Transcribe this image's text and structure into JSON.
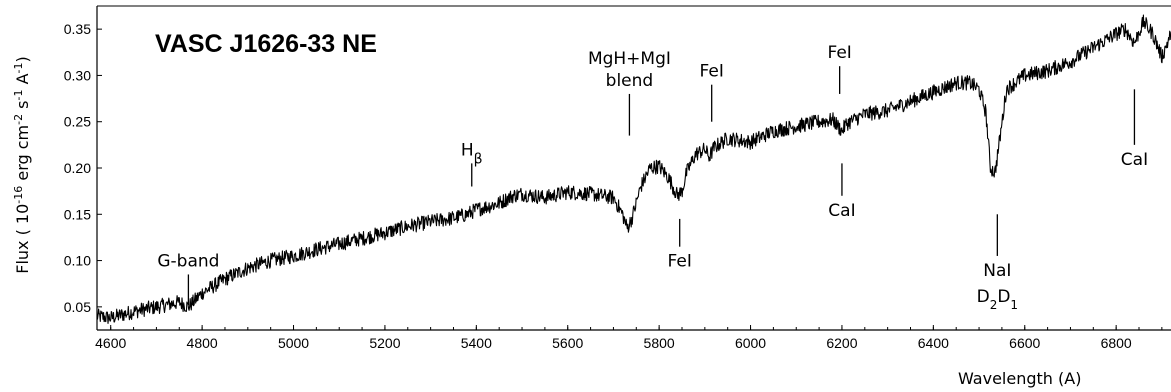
{
  "chart_data": {
    "type": "line",
    "title": "VASC J1626-33  NE",
    "xlabel": "Wavelength (A)",
    "ylabel": {
      "prefix": "Flux ( 10",
      "exp": "-16",
      "mid": " erg cm",
      "exp2": "-2",
      "mid2": " s",
      "exp3": "-1",
      "mid3": " A",
      "exp4": "-1",
      "suffix": ")"
    },
    "xlim": [
      4570,
      6920
    ],
    "ylim": [
      0.025,
      0.375
    ],
    "x_ticks": [
      4600,
      4800,
      5000,
      5200,
      5400,
      5600,
      5800,
      6000,
      6200,
      6400,
      6600,
      6800
    ],
    "y_ticks": [
      0.05,
      0.1,
      0.15,
      0.2,
      0.25,
      0.3,
      0.35
    ],
    "y_tick_labels": [
      "0.05",
      "0.10",
      "0.15",
      "0.20",
      "0.25",
      "0.30",
      "0.35"
    ],
    "grid": false,
    "legend": "none",
    "series": [
      {
        "x": [
          4570,
          4600,
          4650,
          4700,
          4750,
          4770,
          4800,
          4850,
          4900,
          4950,
          5000,
          5050,
          5100,
          5150,
          5200,
          5250,
          5300,
          5350,
          5380,
          5400,
          5450,
          5480,
          5500,
          5550,
          5600,
          5650,
          5700,
          5720,
          5730,
          5740,
          5760,
          5780,
          5800,
          5820,
          5840,
          5850,
          5860,
          5880,
          5900,
          5910,
          5920,
          5950,
          6000,
          6050,
          6100,
          6150,
          6180,
          6200,
          6210,
          6250,
          6300,
          6350,
          6400,
          6450,
          6480,
          6500,
          6515,
          6525,
          6535,
          6545,
          6560,
          6600,
          6650,
          6700,
          6750,
          6800,
          6820,
          6840,
          6860,
          6880,
          6900,
          6920
        ],
        "y": [
          0.04,
          0.038,
          0.045,
          0.05,
          0.055,
          0.05,
          0.065,
          0.08,
          0.092,
          0.1,
          0.105,
          0.112,
          0.118,
          0.124,
          0.13,
          0.137,
          0.142,
          0.146,
          0.15,
          0.155,
          0.162,
          0.17,
          0.172,
          0.168,
          0.174,
          0.172,
          0.168,
          0.15,
          0.135,
          0.145,
          0.18,
          0.2,
          0.202,
          0.19,
          0.17,
          0.175,
          0.195,
          0.215,
          0.22,
          0.212,
          0.222,
          0.232,
          0.228,
          0.24,
          0.245,
          0.25,
          0.252,
          0.24,
          0.248,
          0.258,
          0.262,
          0.272,
          0.282,
          0.292,
          0.292,
          0.285,
          0.26,
          0.2,
          0.195,
          0.23,
          0.285,
          0.3,
          0.305,
          0.315,
          0.33,
          0.345,
          0.35,
          0.335,
          0.358,
          0.345,
          0.32,
          0.345
        ],
        "noise_amplitude": 0.008
      }
    ],
    "annotations": [
      {
        "id": "g-band",
        "label": "G-band",
        "x": 4770,
        "line_from": 0.052,
        "line_to": 0.085
      },
      {
        "id": "hbeta",
        "label": "H",
        "sub": "β",
        "x": 5390,
        "line_from": 0.18,
        "line_to": 0.205
      },
      {
        "id": "mgh-mgi",
        "label": "MgH+MgI",
        "label2": "blend",
        "x": 5735,
        "line_from": 0.235,
        "line_to": 0.28
      },
      {
        "id": "fei-5915",
        "label": "FeI",
        "x": 5915,
        "line_from": 0.25,
        "line_to": 0.29
      },
      {
        "id": "fei-5845",
        "label": "FeI",
        "x": 5845,
        "line_from": 0.115,
        "line_to": 0.145
      },
      {
        "id": "fei-6190",
        "label": "FeI",
        "x": 6195,
        "line_from": 0.28,
        "line_to": 0.31
      },
      {
        "id": "cai-6200",
        "label": "CaI",
        "x": 6200,
        "line_from": 0.17,
        "line_to": 0.205
      },
      {
        "id": "nai",
        "label": "NaI",
        "label2": "D",
        "label2_sub1": "2",
        "label2_mid": "D",
        "label2_sub2": "1",
        "x": 6540,
        "line_from": 0.105,
        "line_to": 0.15
      },
      {
        "id": "cai-6840",
        "label": "CaI",
        "x": 6840,
        "line_from": 0.225,
        "line_to": 0.285
      }
    ]
  }
}
